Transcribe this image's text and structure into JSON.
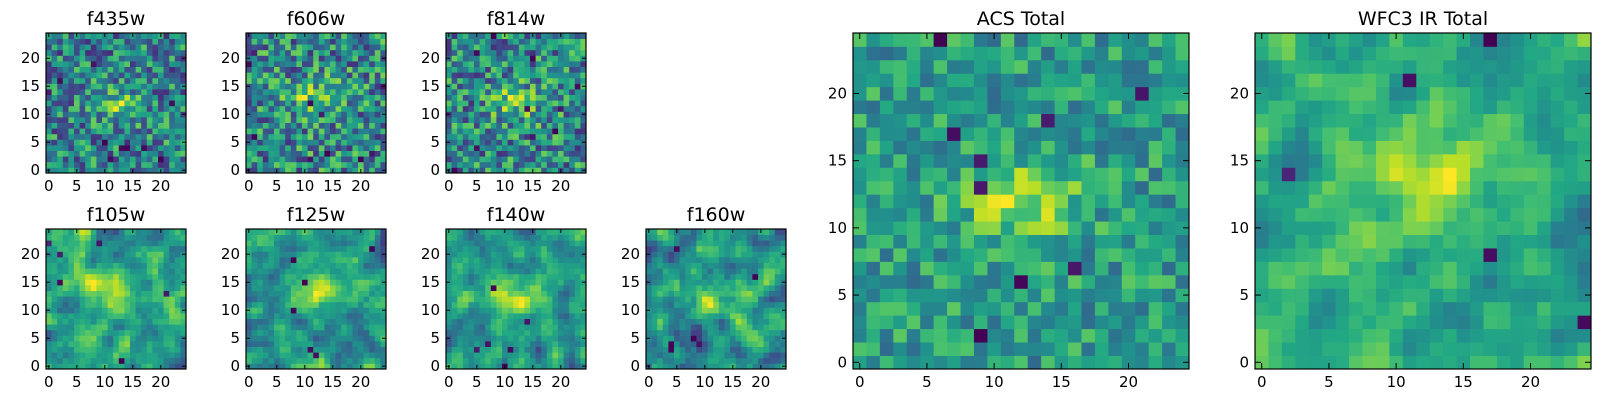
{
  "chart_data": [
    {
      "type": "heatmap",
      "title": "f435w",
      "grid_size": 25,
      "colormap": "viridis",
      "xticks": [
        0,
        5,
        10,
        15,
        20
      ],
      "yticks": [
        0,
        5,
        10,
        15,
        20
      ],
      "xlim": [
        -0.5,
        24.5
      ],
      "ylim": [
        -0.5,
        24.5
      ],
      "seed": 11,
      "hotspot": [
        12,
        12
      ],
      "smooth": 0,
      "noise": 1.0,
      "outliers": 10
    },
    {
      "type": "heatmap",
      "title": "f606w",
      "grid_size": 25,
      "colormap": "viridis",
      "xticks": [
        0,
        5,
        10,
        15,
        20
      ],
      "yticks": [
        0,
        5,
        10,
        15,
        20
      ],
      "xlim": [
        -0.5,
        24.5
      ],
      "ylim": [
        -0.5,
        24.5
      ],
      "seed": 23,
      "hotspot": [
        12,
        13
      ],
      "smooth": 0,
      "noise": 1.0,
      "outliers": 10
    },
    {
      "type": "heatmap",
      "title": "f814w",
      "grid_size": 25,
      "colormap": "viridis",
      "xticks": [
        0,
        5,
        10,
        15,
        20
      ],
      "yticks": [
        0,
        5,
        10,
        15,
        20
      ],
      "xlim": [
        -0.5,
        24.5
      ],
      "ylim": [
        -0.5,
        24.5
      ],
      "seed": 37,
      "hotspot": [
        12,
        12
      ],
      "smooth": 0,
      "noise": 1.0,
      "outliers": 10
    },
    {
      "type": "heatmap",
      "title": "f105w",
      "grid_size": 25,
      "colormap": "viridis",
      "xticks": [
        0,
        5,
        10,
        15,
        20
      ],
      "yticks": [
        0,
        5,
        10,
        15,
        20
      ],
      "xlim": [
        -0.5,
        24.5
      ],
      "ylim": [
        -0.5,
        24.5
      ],
      "seed": 41,
      "hotspot": [
        12,
        13
      ],
      "smooth": 1,
      "noise": 0.85,
      "outliers": 6
    },
    {
      "type": "heatmap",
      "title": "f125w",
      "grid_size": 25,
      "colormap": "viridis",
      "xticks": [
        0,
        5,
        10,
        15,
        20
      ],
      "yticks": [
        0,
        5,
        10,
        15,
        20
      ],
      "xlim": [
        -0.5,
        24.5
      ],
      "ylim": [
        -0.5,
        24.5
      ],
      "seed": 53,
      "hotspot": [
        13,
        14
      ],
      "smooth": 1,
      "noise": 0.85,
      "outliers": 6
    },
    {
      "type": "heatmap",
      "title": "f140w",
      "grid_size": 25,
      "colormap": "viridis",
      "xticks": [
        0,
        5,
        10,
        15,
        20
      ],
      "yticks": [
        0,
        5,
        10,
        15,
        20
      ],
      "xlim": [
        -0.5,
        24.5
      ],
      "ylim": [
        -0.5,
        24.5
      ],
      "seed": 67,
      "hotspot": [
        12,
        13
      ],
      "smooth": 1,
      "noise": 0.85,
      "outliers": 6
    },
    {
      "type": "heatmap",
      "title": "f160w",
      "grid_size": 25,
      "colormap": "viridis",
      "xticks": [
        0,
        5,
        10,
        15,
        20
      ],
      "yticks": [
        0,
        5,
        10,
        15,
        20
      ],
      "xlim": [
        -0.5,
        24.5
      ],
      "ylim": [
        -0.5,
        24.5
      ],
      "seed": 79,
      "hotspot": [
        12,
        12
      ],
      "smooth": 1,
      "noise": 0.85,
      "outliers": 6
    },
    {
      "type": "heatmap",
      "title": "ACS Total",
      "grid_size": 25,
      "colormap": "viridis",
      "xticks": [
        0,
        5,
        10,
        15,
        20
      ],
      "yticks": [
        0,
        5,
        10,
        15,
        20
      ],
      "xlim": [
        -0.5,
        24.5
      ],
      "ylim": [
        -0.5,
        24.5
      ],
      "seed": 97,
      "hotspot": [
        12,
        12
      ],
      "smooth": 0,
      "noise": 0.55,
      "outliers": 9
    },
    {
      "type": "heatmap",
      "title": "WFC3 IR Total",
      "grid_size": 25,
      "colormap": "viridis",
      "xticks": [
        0,
        5,
        10,
        15,
        20
      ],
      "yticks": [
        0,
        5,
        10,
        15,
        20
      ],
      "xlim": [
        -0.5,
        24.5
      ],
      "ylim": [
        -0.5,
        24.5
      ],
      "seed": 113,
      "hotspot": [
        12,
        13
      ],
      "smooth": 1,
      "noise": 0.6,
      "outliers": 5
    }
  ]
}
